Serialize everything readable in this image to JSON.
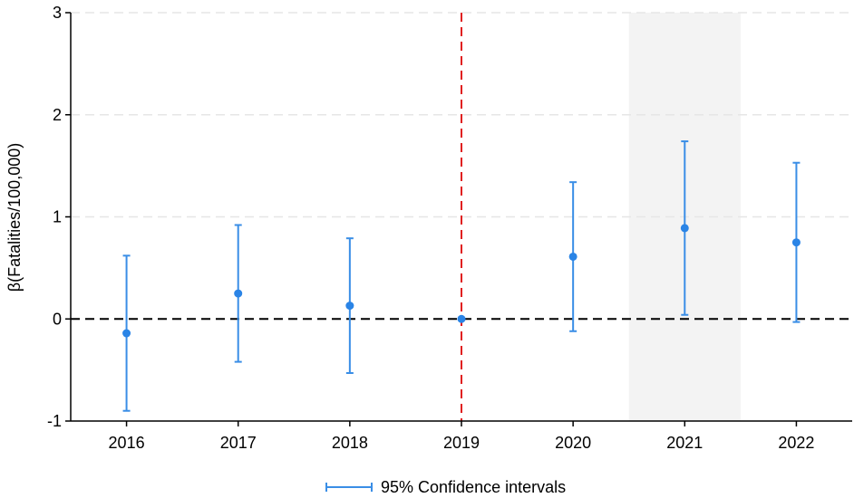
{
  "chart_data": {
    "type": "scatter",
    "ylabel": "β(Fatalities/100,000)",
    "xlabel": "",
    "x": [
      2016,
      2017,
      2018,
      2019,
      2020,
      2021,
      2022
    ],
    "x_tick_labels": [
      "2016",
      "2017",
      "2018",
      "2019",
      "2020",
      "2021",
      "2022"
    ],
    "y_ticks": [
      -1,
      0,
      1,
      2,
      3
    ],
    "y_tick_labels": [
      "-1",
      "0",
      "1",
      "2",
      "3"
    ],
    "ylim": [
      -1,
      3
    ],
    "xlim": [
      2015.5,
      2022.5
    ],
    "series": [
      {
        "name": "95% Confidence intervals",
        "estimates": [
          -0.14,
          0.25,
          0.13,
          0.0,
          0.61,
          0.89,
          0.75
        ],
        "ci_low": [
          -0.9,
          -0.42,
          -0.53,
          0.0,
          -0.12,
          0.04,
          -0.03
        ],
        "ci_high": [
          0.62,
          0.92,
          0.79,
          0.0,
          1.34,
          1.74,
          1.53
        ]
      }
    ],
    "reference_lines": {
      "vertical_x": 2019,
      "horizontal_y": 0
    },
    "shaded_x_range": [
      2020.5,
      2021.5
    ],
    "grid": "horizontal-dashed",
    "legend": {
      "placement": "bottom-center",
      "label": "95% Confidence intervals"
    },
    "colors": {
      "marker": "#2a84e6",
      "ci": "#3a8ee6",
      "vline": "#e02020",
      "hline": "#000000",
      "shade": "#f3f3f3",
      "grid": "#e6e6e6"
    }
  }
}
